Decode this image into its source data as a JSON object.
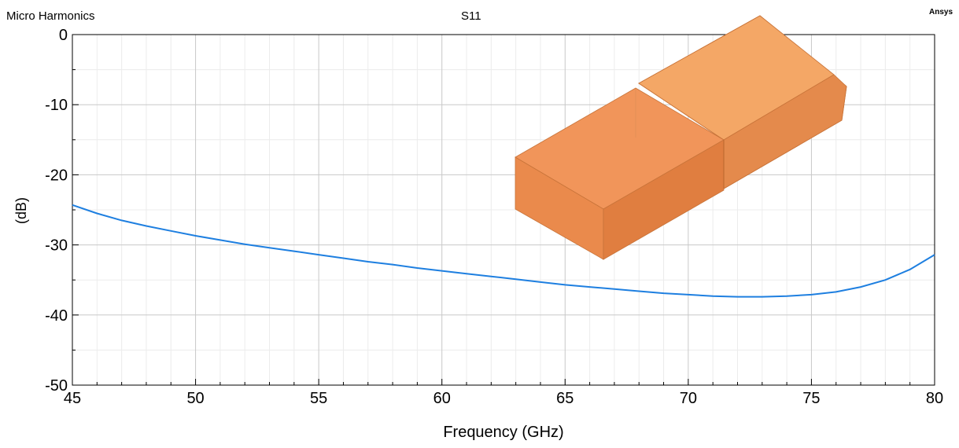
{
  "header": {
    "company": "Micro Harmonics",
    "brand": "Ansys"
  },
  "chart_data": {
    "type": "line",
    "title": "S11",
    "xlabel": "Frequency (GHz)",
    "ylabel": "(dB)",
    "xlim": [
      45,
      80
    ],
    "ylim": [
      -50,
      0
    ],
    "xticks": [
      45,
      50,
      55,
      60,
      65,
      70,
      75,
      80
    ],
    "yticks": [
      0,
      -10,
      -20,
      -30,
      -40,
      -50
    ],
    "grid": true,
    "legend": "none",
    "series": [
      {
        "color": "#1e7fe0",
        "x": [
          45,
          46,
          47,
          48,
          49,
          50,
          51,
          52,
          53,
          54,
          55,
          56,
          57,
          58,
          59,
          60,
          61,
          62,
          63,
          64,
          65,
          66,
          67,
          68,
          69,
          70,
          71,
          72,
          73,
          74,
          75,
          76,
          77,
          78,
          79,
          80
        ],
        "y": [
          -24.3,
          -25.5,
          -26.5,
          -27.3,
          -28.0,
          -28.7,
          -29.3,
          -29.9,
          -30.4,
          -30.9,
          -31.4,
          -31.9,
          -32.4,
          -32.8,
          -33.3,
          -33.7,
          -34.1,
          -34.5,
          -34.9,
          -35.3,
          -35.7,
          -36.0,
          -36.3,
          -36.6,
          -36.9,
          -37.1,
          -37.3,
          -37.4,
          -37.4,
          -37.3,
          -37.1,
          -36.7,
          -36.0,
          -35.0,
          -33.5,
          -31.4
        ]
      }
    ]
  }
}
